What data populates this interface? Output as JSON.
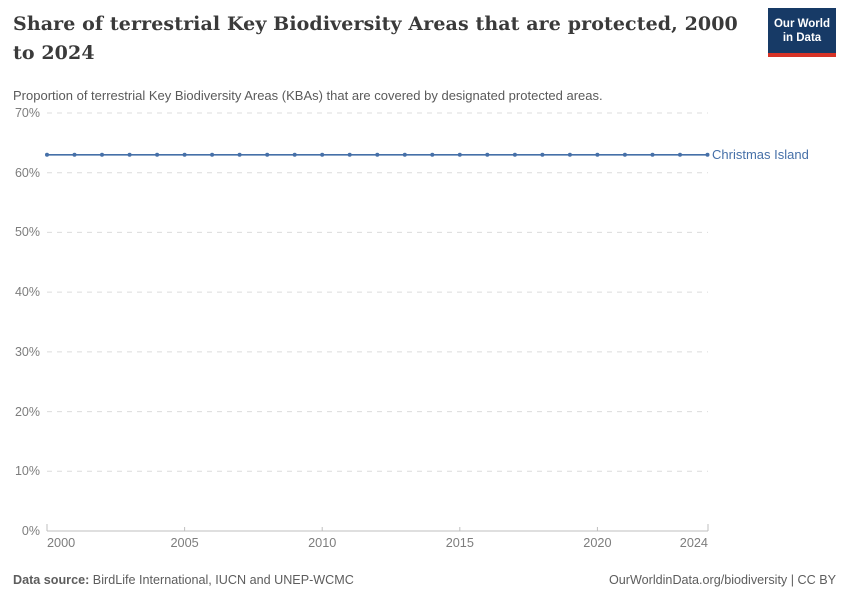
{
  "header": {
    "title": "Share of terrestrial Key Biodiversity Areas that are protected, 2000 to 2024",
    "subtitle": "Proportion of terrestrial Key Biodiversity Areas (KBAs) that are covered by designated protected areas.",
    "logo": {
      "line1": "Our World",
      "line2": "in Data"
    }
  },
  "chart_data": {
    "type": "line",
    "title": "Share of terrestrial Key Biodiversity Areas that are protected, 2000 to 2024",
    "xlabel": "",
    "ylabel": "",
    "x": [
      2000,
      2001,
      2002,
      2003,
      2004,
      2005,
      2006,
      2007,
      2008,
      2009,
      2010,
      2011,
      2012,
      2013,
      2014,
      2015,
      2016,
      2017,
      2018,
      2019,
      2020,
      2021,
      2022,
      2023,
      2024
    ],
    "series": [
      {
        "name": "Christmas Island",
        "color": "#4670a8",
        "values": [
          63,
          63,
          63,
          63,
          63,
          63,
          63,
          63,
          63,
          63,
          63,
          63,
          63,
          63,
          63,
          63,
          63,
          63,
          63,
          63,
          63,
          63,
          63,
          63,
          63
        ]
      }
    ],
    "xlim": [
      2000,
      2024
    ],
    "ylim": [
      0,
      70
    ],
    "x_ticks": [
      2000,
      2005,
      2010,
      2015,
      2020,
      2024
    ],
    "y_ticks": [
      0,
      10,
      20,
      30,
      40,
      50,
      60,
      70
    ],
    "y_tick_suffix": "%",
    "grid": "horizontal-dashed",
    "legend_position": "end-of-line-label",
    "markers": true
  },
  "colors": {
    "series_blue": "#4670a8",
    "brand_navy": "#173a66",
    "brand_red": "#d73327",
    "grid": "#dcdcdc",
    "axis_line": "#bfbfbf",
    "axis_text": "#7d7d7d",
    "title_text": "#3a3a3a",
    "subtitle_text": "#5a5a5a"
  },
  "footer": {
    "source_label": "Data source:",
    "source_text": " BirdLife International, IUCN and UNEP-WCMC",
    "attribution": "OurWorldinData.org/biodiversity | CC BY"
  }
}
